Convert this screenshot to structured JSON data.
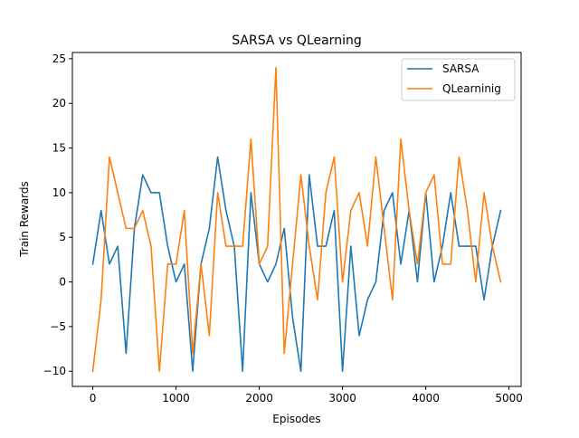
{
  "chart_data": {
    "type": "line",
    "title": "SARSA vs QLearning",
    "xlabel": "Episodes",
    "ylabel": "Train Rewards",
    "xlim": [
      -245,
      5145
    ],
    "ylim": [
      -11.7,
      25.7
    ],
    "xticks": [
      0,
      1000,
      2000,
      3000,
      4000,
      5000
    ],
    "yticks": [
      -10,
      -5,
      0,
      5,
      10,
      15,
      20,
      25
    ],
    "xtick_labels": [
      "0",
      "1000",
      "2000",
      "3000",
      "4000",
      "5000"
    ],
    "ytick_labels": [
      "−10",
      "−5",
      "0",
      "5",
      "10",
      "15",
      "20",
      "25"
    ],
    "grid": false,
    "legend_position": "top-right",
    "x": [
      0,
      100,
      200,
      300,
      400,
      500,
      600,
      700,
      800,
      900,
      1000,
      1100,
      1200,
      1300,
      1400,
      1500,
      1600,
      1700,
      1800,
      1900,
      2000,
      2100,
      2200,
      2300,
      2400,
      2500,
      2600,
      2700,
      2800,
      2900,
      3000,
      3100,
      3200,
      3300,
      3400,
      3500,
      3600,
      3700,
      3800,
      3900,
      4000,
      4100,
      4200,
      4300,
      4400,
      4500,
      4600,
      4700,
      4800,
      4900
    ],
    "series": [
      {
        "name": "SARSA",
        "color": "#1f77b4",
        "values": [
          2,
          8,
          2,
          4,
          -8,
          6,
          12,
          10,
          10,
          4,
          0,
          2,
          -10,
          2,
          6,
          14,
          8,
          4,
          -10,
          10,
          2,
          0,
          2,
          6,
          -4,
          -10,
          12,
          4,
          4,
          8,
          -10,
          4,
          -6,
          -2,
          0,
          8,
          10,
          2,
          8,
          0,
          10,
          0,
          4,
          10,
          4,
          4,
          4,
          -2,
          4,
          8
        ]
      },
      {
        "name": "QLearninig",
        "color": "#ff7f0e",
        "values": [
          -10,
          -2,
          14,
          10,
          6,
          6,
          8,
          4,
          -10,
          2,
          2,
          8,
          -8,
          2,
          -6,
          10,
          4,
          4,
          4,
          16,
          2,
          4,
          24,
          -8,
          2,
          12,
          4,
          -2,
          10,
          14,
          0,
          8,
          10,
          4,
          14,
          6,
          -2,
          16,
          8,
          2,
          10,
          12,
          2,
          2,
          14,
          8,
          0,
          10,
          4,
          0
        ]
      }
    ]
  }
}
